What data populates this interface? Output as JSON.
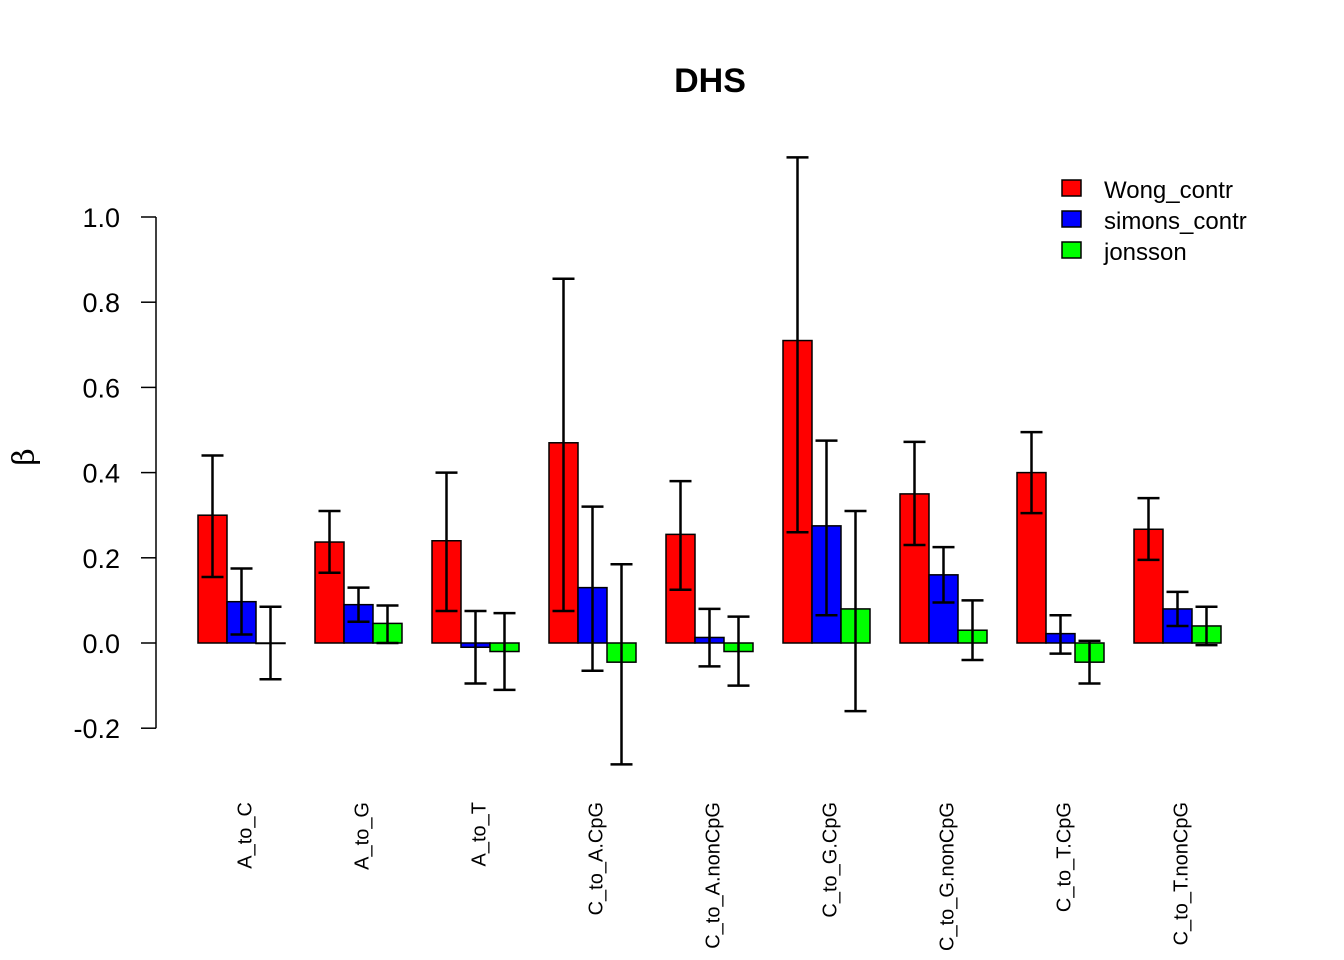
{
  "chart_data": {
    "type": "bar",
    "title": "DHS",
    "xlabel": "",
    "ylabel": "β",
    "ylim": [
      -0.25,
      1.15
    ],
    "yticks": [
      -0.2,
      0.0,
      0.2,
      0.4,
      0.6,
      0.8,
      1.0
    ],
    "ytick_labels": [
      "-0.2",
      "0.0",
      "0.2",
      "0.4",
      "0.6",
      "0.8",
      "1.0"
    ],
    "grid": false,
    "legend_position": "top-right",
    "categories": [
      "A_to_C",
      "A_to_G",
      "A_to_T",
      "C_to_A.CpG",
      "C_to_A.nonCpG",
      "C_to_G.CpG",
      "C_to_G.nonCpG",
      "C_to_T.CpG",
      "C_to_T.nonCpG"
    ],
    "series": [
      {
        "name": "Wong_contr",
        "color": "#ff0000",
        "values": [
          0.3,
          0.237,
          0.24,
          0.47,
          0.255,
          0.71,
          0.35,
          0.4,
          0.267
        ],
        "err_low": [
          0.155,
          0.165,
          0.075,
          0.075,
          0.125,
          0.26,
          0.23,
          0.305,
          0.195
        ],
        "err_high": [
          0.44,
          0.31,
          0.4,
          0.855,
          0.38,
          1.14,
          0.472,
          0.495,
          0.34
        ]
      },
      {
        "name": "simons_contr",
        "color": "#0000ff",
        "values": [
          0.097,
          0.09,
          -0.01,
          0.13,
          0.013,
          0.275,
          0.16,
          0.022,
          0.08
        ],
        "err_low": [
          0.02,
          0.05,
          -0.095,
          -0.065,
          -0.055,
          0.065,
          0.095,
          -0.025,
          0.04
        ],
        "err_high": [
          0.175,
          0.13,
          0.075,
          0.32,
          0.08,
          0.475,
          0.225,
          0.065,
          0.12
        ]
      },
      {
        "name": "jonsson",
        "color": "#00ff00",
        "values": [
          0.0,
          0.046,
          -0.02,
          -0.045,
          -0.02,
          0.08,
          0.03,
          -0.045,
          0.04
        ],
        "err_low": [
          -0.085,
          0.0,
          -0.11,
          -0.285,
          -0.1,
          -0.16,
          -0.04,
          -0.095,
          -0.005
        ],
        "err_high": [
          0.085,
          0.088,
          0.07,
          0.185,
          0.062,
          0.31,
          0.1,
          0.005,
          0.085
        ]
      }
    ]
  }
}
